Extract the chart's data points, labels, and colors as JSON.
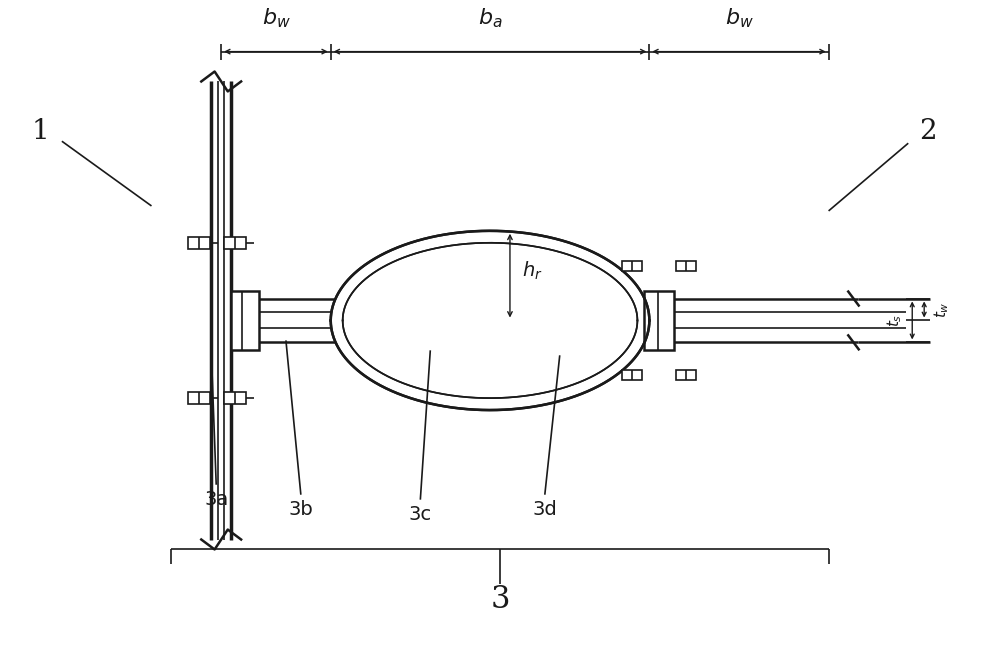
{
  "bg_color": "#ffffff",
  "line_color": "#1a1a1a",
  "figsize": [
    10.0,
    6.59
  ],
  "dpi": 100,
  "label_1": "1",
  "label_2": "2",
  "label_3": "3",
  "label_3a": "3a",
  "label_3b": "3b",
  "label_3c": "3c",
  "label_3d": "3d",
  "label_bw": "$b_w$",
  "label_ba": "$b_a$",
  "label_hr": "$h_r$",
  "label_tw": "$t_w$",
  "label_ts": "$t_s$"
}
